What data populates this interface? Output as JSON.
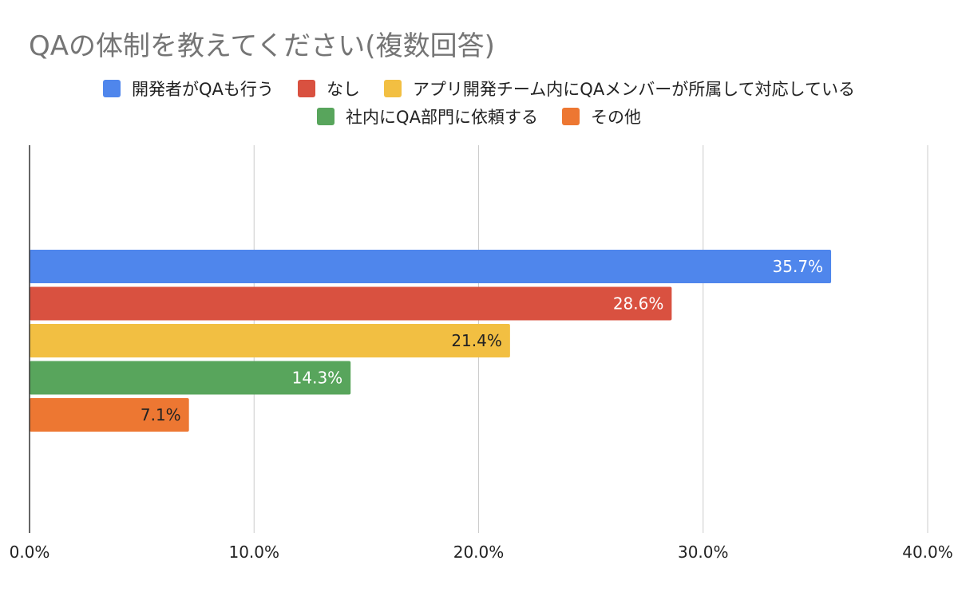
{
  "chart_data": {
    "type": "bar",
    "orientation": "horizontal",
    "title": "QAの体制を教えてください(複数回答)",
    "categories": [
      "開発者がQAも行う",
      "なし",
      "アプリ開発チーム内にQAメンバーが所属して対応している",
      "社内にQA部門に依頼する",
      "その他"
    ],
    "values": [
      35.7,
      28.6,
      21.4,
      14.3,
      7.1
    ],
    "value_labels": [
      "35.7%",
      "28.6%",
      "21.4%",
      "14.3%",
      "7.1%"
    ],
    "colors": [
      "#4f86ec",
      "#d95140",
      "#f2bf42",
      "#58a55c",
      "#ed7732"
    ],
    "label_colors": [
      "#ffffff",
      "#ffffff",
      "#222222",
      "#ffffff",
      "#222222"
    ],
    "xlim": [
      0,
      40
    ],
    "xticks": [
      0,
      10,
      20,
      30,
      40
    ],
    "xtick_labels": [
      "0.0%",
      "10.0%",
      "20.0%",
      "30.0%",
      "40.0%"
    ],
    "grid": true,
    "xlabel": "",
    "ylabel": "",
    "legend_position": "top"
  },
  "legend": {
    "items": [
      {
        "label": "開発者がQAも行う",
        "color": "#4f86ec"
      },
      {
        "label": "なし",
        "color": "#d95140"
      },
      {
        "label": "アプリ開発チーム内にQAメンバーが所属して対応している",
        "color": "#f2bf42"
      },
      {
        "label": "社内にQA部門に依頼する",
        "color": "#58a55c"
      },
      {
        "label": "その他",
        "color": "#ed7732"
      }
    ]
  }
}
